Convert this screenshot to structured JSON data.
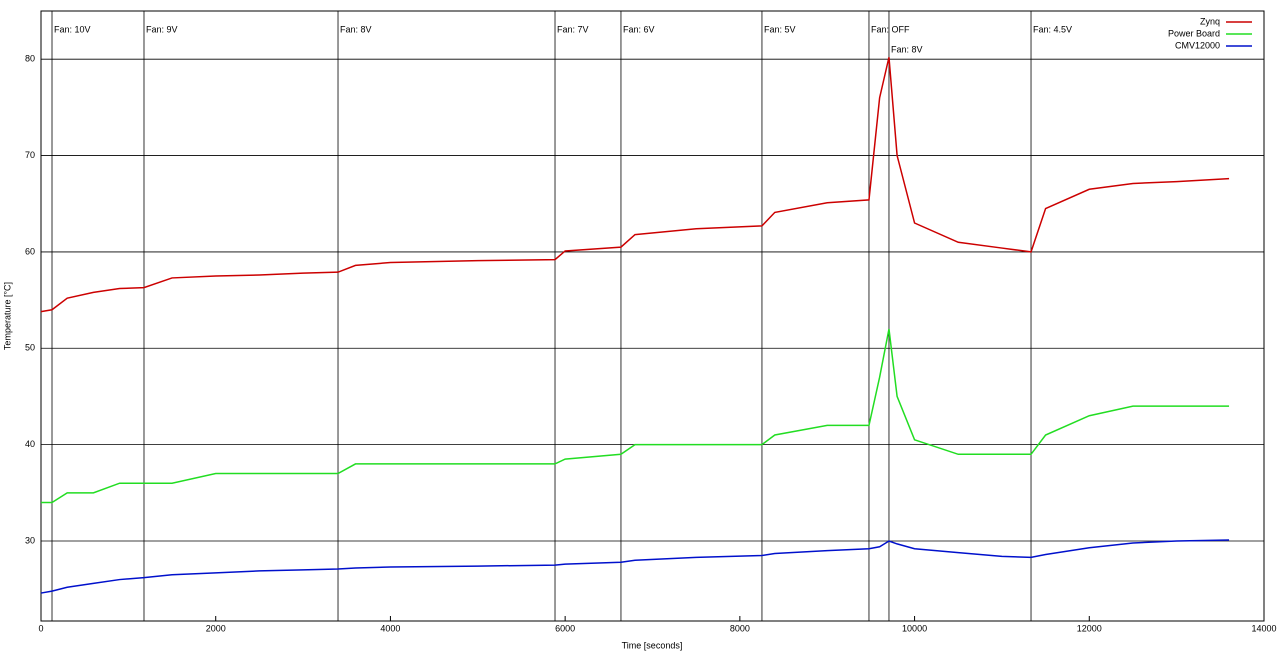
{
  "chart_data": {
    "type": "line",
    "x_label": "Time [seconds]",
    "y_label": "Temperature [°C]",
    "x": [
      0,
      126,
      300,
      600,
      900,
      1179,
      1500,
      2000,
      2500,
      3000,
      3400,
      3600,
      4000,
      5000,
      5884,
      6000,
      6639,
      6800,
      7500,
      8253,
      8400,
      9000,
      9478,
      9600,
      9707,
      9800,
      10000,
      10500,
      11000,
      11333,
      11500,
      12000,
      12500,
      13000,
      13600
    ],
    "series": [
      {
        "name": "Zynq",
        "color": "#cc0000",
        "values": [
          53.8,
          54,
          55.2,
          55.8,
          56.2,
          56.3,
          57.3,
          57.5,
          57.6,
          57.8,
          57.9,
          58.6,
          58.9,
          59.1,
          59.2,
          60.1,
          60.5,
          61.8,
          62.4,
          62.7,
          64.1,
          65.1,
          65.4,
          76,
          80.2,
          70,
          63,
          61,
          60.4,
          60.0,
          64.5,
          66.5,
          67.1,
          67.3,
          67.6
        ]
      },
      {
        "name": "Power Board",
        "color": "#22dd22",
        "values": [
          34,
          34,
          35,
          35,
          36,
          36,
          36,
          37,
          37,
          37,
          37,
          38,
          38,
          38,
          38,
          38.5,
          39,
          40,
          40,
          40,
          41,
          42,
          42,
          47,
          52,
          45,
          40.5,
          39,
          39,
          39,
          41,
          43,
          44,
          44,
          44
        ]
      },
      {
        "name": "CMV12000",
        "color": "#0010cc",
        "values": [
          24.6,
          24.8,
          25.2,
          25.6,
          26,
          26.2,
          26.5,
          26.7,
          26.9,
          27,
          27.1,
          27.2,
          27.3,
          27.4,
          27.5,
          27.6,
          27.8,
          28,
          28.3,
          28.5,
          28.7,
          29,
          29.2,
          29.4,
          30,
          29.7,
          29.2,
          28.8,
          28.4,
          28.3,
          28.6,
          29.3,
          29.8,
          30,
          30.1
        ]
      }
    ],
    "annotations": [
      {
        "x": 126,
        "label": "Fan: 10V"
      },
      {
        "x": 1179,
        "label": "Fan: 9V"
      },
      {
        "x": 3400,
        "label": "Fan: 8V"
      },
      {
        "x": 5884,
        "label": "Fan: 7V"
      },
      {
        "x": 6639,
        "label": "Fan: 6V"
      },
      {
        "x": 8253,
        "label": "Fan: 5V"
      },
      {
        "x": 9478,
        "label": "Fan: OFF"
      },
      {
        "x": 9707,
        "label": "Fan: 8V"
      },
      {
        "x": 11333,
        "label": "Fan: 4.5V"
      }
    ],
    "xlim": [
      0,
      14000
    ],
    "xticks": [
      0,
      2000,
      4000,
      6000,
      8000,
      10000,
      12000,
      14000
    ],
    "ylim": [
      21.7,
      85
    ],
    "yticks": [
      30,
      40,
      50,
      60,
      70,
      80
    ],
    "grid": true,
    "legend": "top-right"
  }
}
